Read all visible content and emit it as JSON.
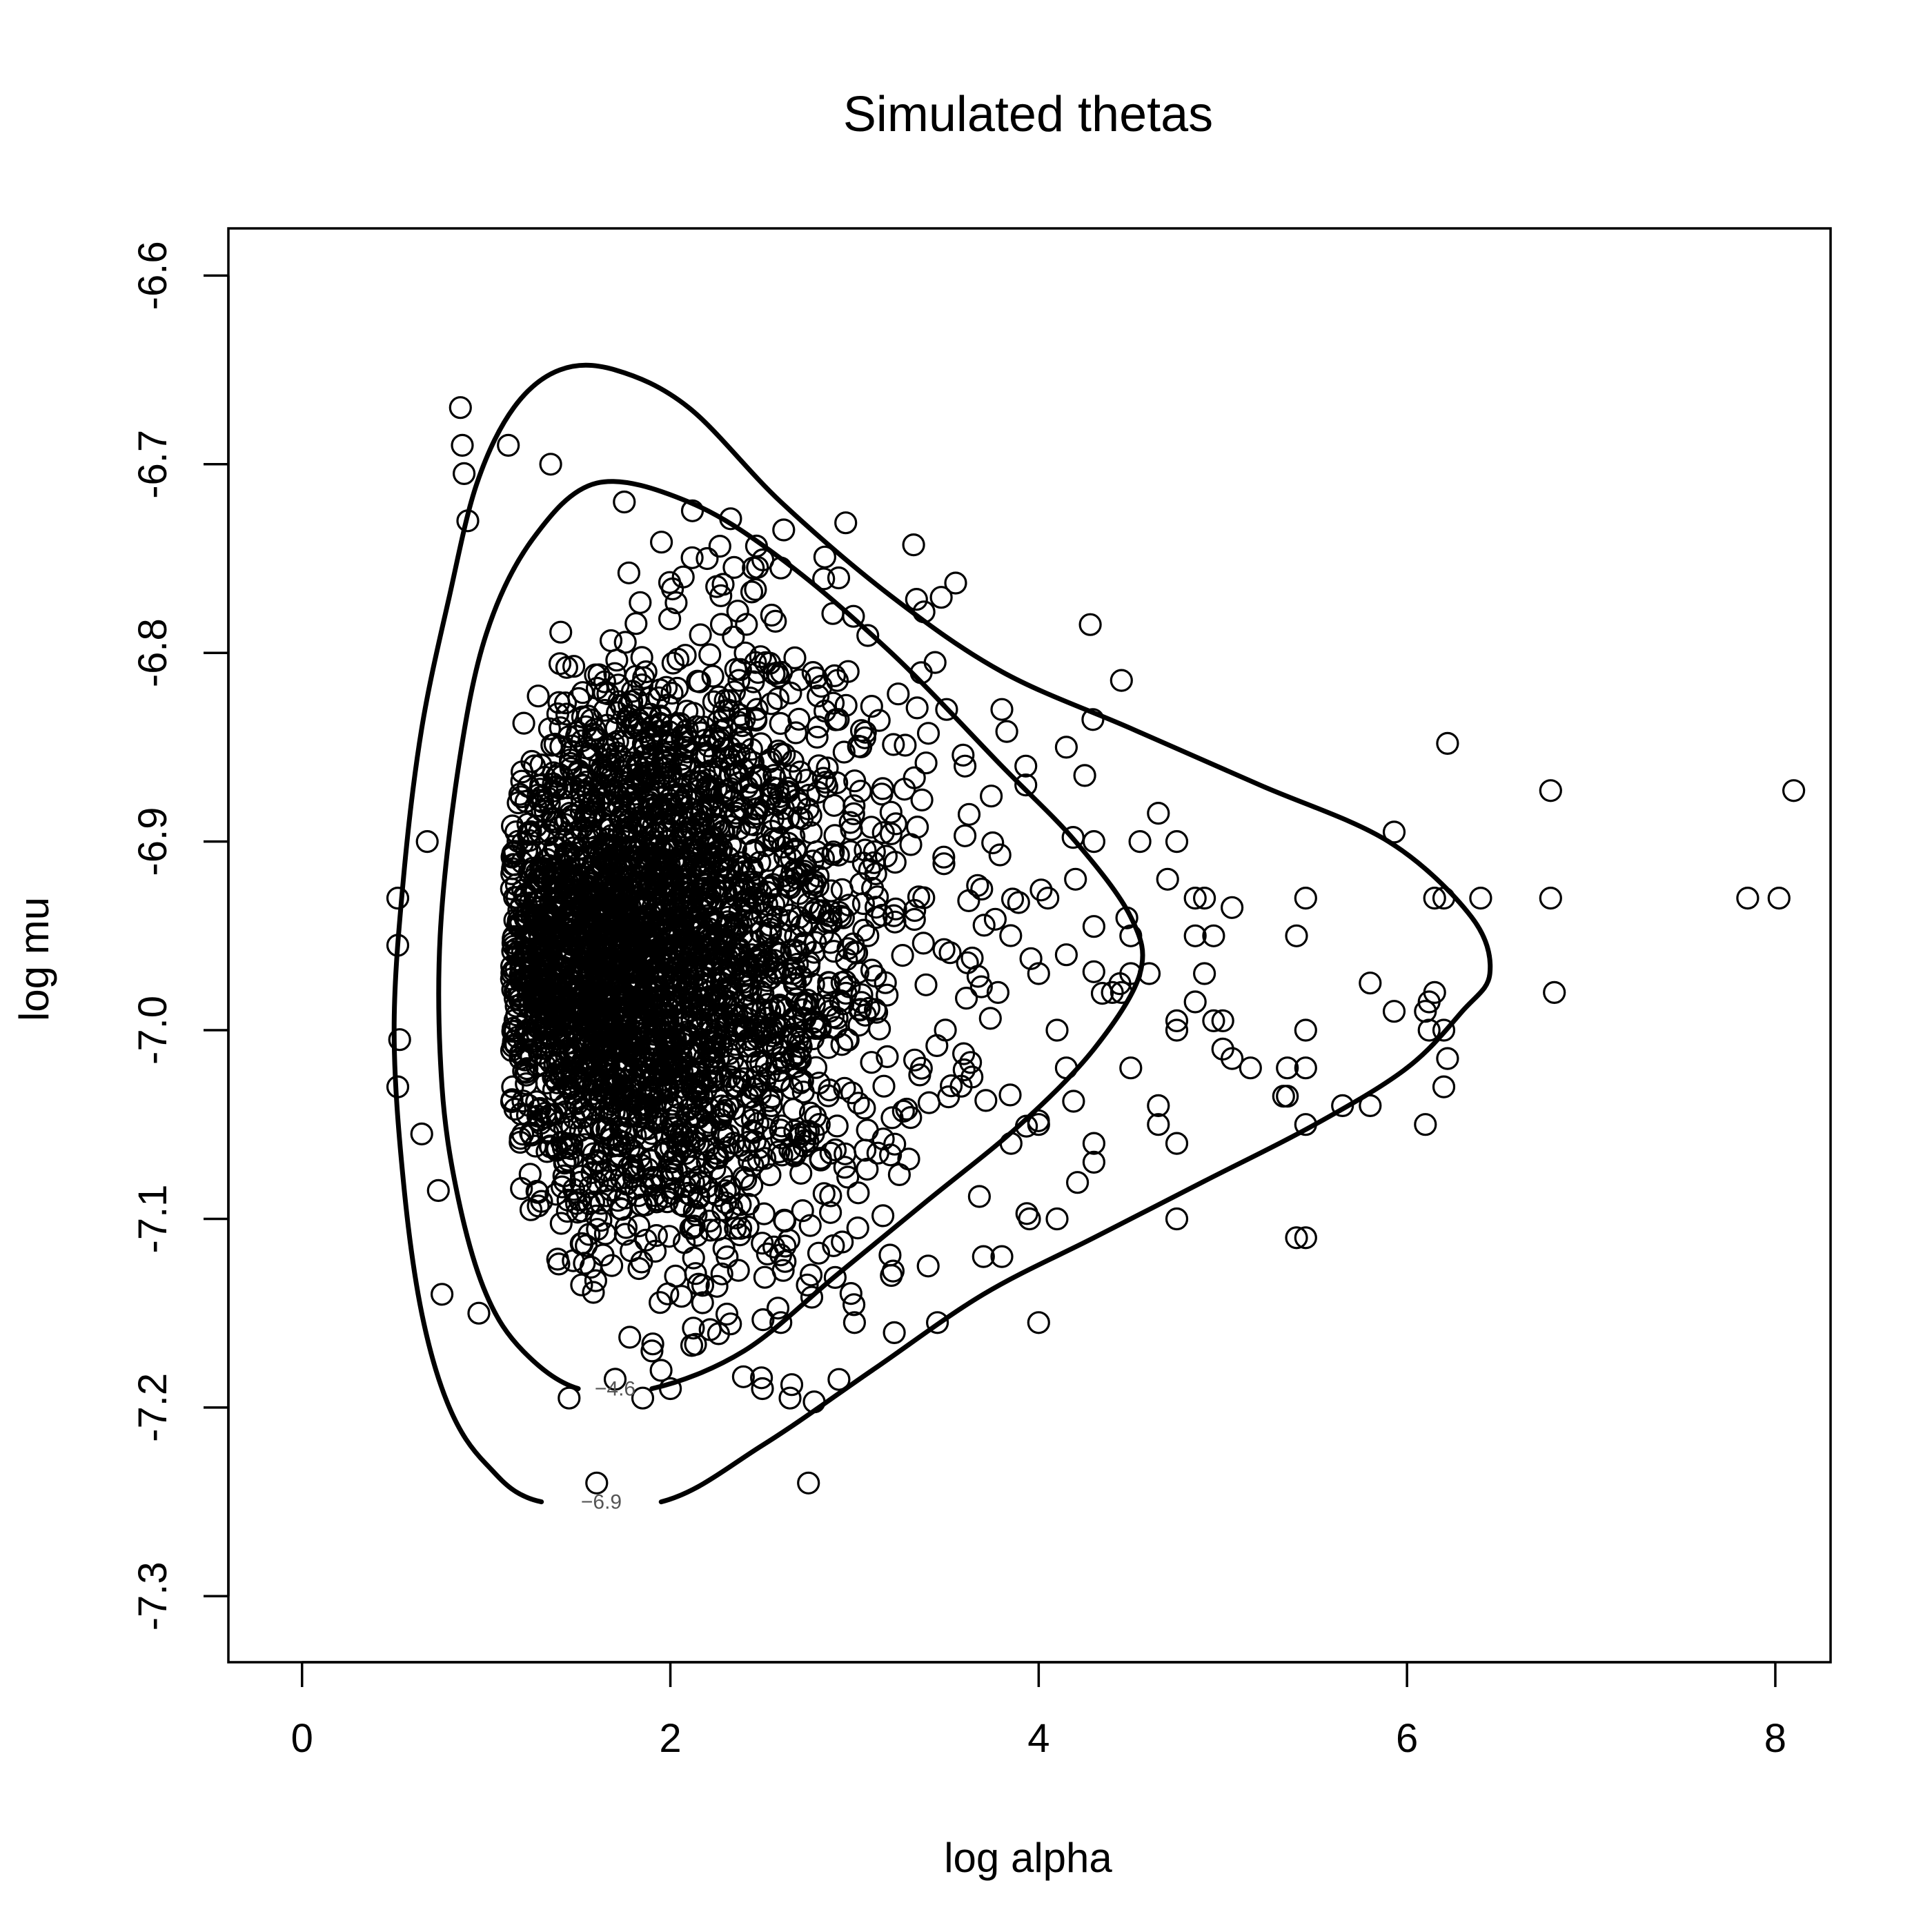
{
  "chart_data": {
    "type": "scatter",
    "title": "Simulated thetas",
    "xlabel": "log alpha",
    "ylabel": "log mu",
    "xlim": [
      -0.4,
      8.3
    ],
    "ylim": [
      -7.335,
      -6.575
    ],
    "xticks": [
      0,
      2,
      4,
      6,
      8
    ],
    "yticks": [
      -7.3,
      -7.2,
      -7.1,
      -7.0,
      -6.9,
      -6.8,
      -6.7,
      -6.6
    ],
    "xtick_labels": [
      "0",
      "2",
      "4",
      "6",
      "8"
    ],
    "ytick_labels": [
      "-7.3",
      "-7.2",
      "-7.1",
      "-7.0",
      "-6.9",
      "-6.8",
      "-6.7",
      "-6.6"
    ],
    "grid": false,
    "legend": "none",
    "marker": "open-circle",
    "color": "#000000",
    "contour_labels": [
      "-4.6",
      "-6.9"
    ],
    "contours": [
      {
        "level": "-4.6",
        "points": [
          [
            1.9,
            -7.19
          ],
          [
            2.4,
            -7.17
          ],
          [
            2.9,
            -7.13
          ],
          [
            3.4,
            -7.09
          ],
          [
            3.9,
            -7.05
          ],
          [
            4.3,
            -7.01
          ],
          [
            4.55,
            -6.97
          ],
          [
            4.5,
            -6.94
          ],
          [
            4.2,
            -6.9
          ],
          [
            3.8,
            -6.86
          ],
          [
            3.2,
            -6.8
          ],
          [
            2.6,
            -6.75
          ],
          [
            2.1,
            -6.72
          ],
          [
            1.6,
            -6.71
          ],
          [
            1.25,
            -6.74
          ],
          [
            1.0,
            -6.79
          ],
          [
            0.85,
            -6.86
          ],
          [
            0.75,
            -6.95
          ],
          [
            0.76,
            -7.03
          ],
          [
            0.85,
            -7.09
          ],
          [
            1.0,
            -7.14
          ],
          [
            1.2,
            -7.17
          ],
          [
            1.5,
            -7.19
          ]
        ]
      },
      {
        "level": "-6.9",
        "points": [
          [
            1.95,
            -7.25
          ],
          [
            2.5,
            -7.22
          ],
          [
            3.1,
            -7.18
          ],
          [
            3.7,
            -7.14
          ],
          [
            4.3,
            -7.11
          ],
          [
            4.9,
            -7.08
          ],
          [
            5.5,
            -7.05
          ],
          [
            6.0,
            -7.02
          ],
          [
            6.3,
            -6.99
          ],
          [
            6.45,
            -6.97
          ],
          [
            6.35,
            -6.94
          ],
          [
            5.9,
            -6.9
          ],
          [
            5.2,
            -6.87
          ],
          [
            4.5,
            -6.84
          ],
          [
            3.8,
            -6.81
          ],
          [
            3.2,
            -6.77
          ],
          [
            2.6,
            -6.72
          ],
          [
            2.1,
            -6.67
          ],
          [
            1.7,
            -6.65
          ],
          [
            1.4,
            -6.65
          ],
          [
            1.15,
            -6.67
          ],
          [
            0.95,
            -6.71
          ],
          [
            0.8,
            -6.77
          ],
          [
            0.65,
            -6.84
          ],
          [
            0.55,
            -6.92
          ],
          [
            0.5,
            -7.0
          ],
          [
            0.55,
            -7.08
          ],
          [
            0.65,
            -7.15
          ],
          [
            0.8,
            -7.2
          ],
          [
            1.0,
            -7.23
          ],
          [
            1.3,
            -7.25
          ]
        ]
      }
    ],
    "dense_cluster": {
      "center": [
        2.0,
        -6.96
      ],
      "sd": [
        0.55,
        0.075
      ],
      "n": 3200,
      "seed": 12345
    },
    "points": [
      [
        0.52,
        -6.93
      ],
      [
        0.52,
        -6.955
      ],
      [
        0.53,
        -7.005
      ],
      [
        0.52,
        -7.03
      ],
      [
        0.65,
        -7.055
      ],
      [
        0.68,
        -6.9
      ],
      [
        0.74,
        -7.085
      ],
      [
        0.76,
        -7.14
      ],
      [
        0.86,
        -6.67
      ],
      [
        0.87,
        -6.69
      ],
      [
        0.88,
        -6.705
      ],
      [
        0.9,
        -6.73
      ],
      [
        0.96,
        -7.15
      ],
      [
        1.12,
        -6.69
      ],
      [
        1.35,
        -6.7
      ],
      [
        1.6,
        -7.24
      ],
      [
        1.7,
        -7.185
      ],
      [
        1.45,
        -7.195
      ],
      [
        1.9,
        -7.17
      ],
      [
        1.85,
        -7.195
      ],
      [
        2.0,
        -7.19
      ],
      [
        2.75,
        -7.24
      ],
      [
        2.65,
        -7.195
      ],
      [
        2.5,
        -7.19
      ],
      [
        2.6,
        -7.155
      ],
      [
        1.75,
        -6.72
      ],
      [
        2.2,
        -6.75
      ],
      [
        2.45,
        -6.755
      ],
      [
        2.6,
        -6.755
      ],
      [
        2.55,
        -6.78
      ],
      [
        3.5,
        -6.83
      ],
      [
        3.8,
        -6.83
      ],
      [
        3.6,
        -6.86
      ],
      [
        3.93,
        -6.86
      ],
      [
        3.93,
        -6.87
      ],
      [
        4.15,
        -6.85
      ],
      [
        4.28,
        -6.785
      ],
      [
        4.25,
        -6.865
      ],
      [
        4.3,
        -6.9
      ],
      [
        4.2,
        -6.92
      ],
      [
        4.05,
        -6.93
      ],
      [
        4.15,
        -6.96
      ],
      [
        4.3,
        -6.945
      ],
      [
        4.4,
        -6.98
      ],
      [
        4.0,
        -6.97
      ],
      [
        4.1,
        -7.0
      ],
      [
        4.15,
        -7.02
      ],
      [
        4.0,
        -7.05
      ],
      [
        3.85,
        -7.06
      ],
      [
        4.3,
        -7.06
      ],
      [
        4.3,
        -7.07
      ],
      [
        3.95,
        -7.1
      ],
      [
        4.1,
        -7.1
      ],
      [
        3.7,
        -7.12
      ],
      [
        3.8,
        -7.12
      ],
      [
        3.45,
        -7.155
      ],
      [
        4.0,
        -7.155
      ],
      [
        3.4,
        -7.125
      ],
      [
        3.0,
        -7.155
      ],
      [
        3.2,
        -7.13
      ],
      [
        4.5,
        -7.02
      ],
      [
        4.6,
        -6.97
      ],
      [
        4.65,
        -6.885
      ],
      [
        4.7,
        -6.92
      ],
      [
        4.75,
        -6.9
      ],
      [
        4.85,
        -6.93
      ],
      [
        4.9,
        -6.93
      ],
      [
        4.85,
        -6.95
      ],
      [
        4.95,
        -6.95
      ],
      [
        4.9,
        -6.97
      ],
      [
        5.05,
        -6.935
      ],
      [
        4.85,
        -6.985
      ],
      [
        4.95,
        -6.995
      ],
      [
        5.0,
        -6.995
      ],
      [
        5.0,
        -7.01
      ],
      [
        5.05,
        -7.015
      ],
      [
        5.15,
        -7.02
      ],
      [
        4.75,
        -7.0
      ],
      [
        4.75,
        -6.995
      ],
      [
        4.75,
        -7.06
      ],
      [
        4.65,
        -7.04
      ],
      [
        4.65,
        -7.05
      ],
      [
        4.75,
        -7.1
      ],
      [
        4.5,
        -6.95
      ],
      [
        4.5,
        -6.97
      ],
      [
        4.55,
        -6.9
      ],
      [
        4.45,
        -6.98
      ],
      [
        5.4,
        -6.95
      ],
      [
        5.45,
        -6.93
      ],
      [
        5.45,
        -7.0
      ],
      [
        5.45,
        -7.02
      ],
      [
        5.35,
        -7.02
      ],
      [
        5.35,
        -7.035
      ],
      [
        5.33,
        -7.035
      ],
      [
        5.45,
        -7.05
      ],
      [
        5.4,
        -7.11
      ],
      [
        5.45,
        -7.11
      ],
      [
        5.65,
        -7.04
      ],
      [
        5.8,
        -7.04
      ],
      [
        5.8,
        -6.975
      ],
      [
        5.93,
        -6.895
      ],
      [
        5.93,
        -6.99
      ],
      [
        6.1,
        -6.99
      ],
      [
        6.12,
        -6.985
      ],
      [
        6.15,
        -6.98
      ],
      [
        6.12,
        -7.0
      ],
      [
        6.2,
        -7.0
      ],
      [
        6.15,
        -6.93
      ],
      [
        6.2,
        -6.93
      ],
      [
        6.4,
        -6.93
      ],
      [
        6.22,
        -7.015
      ],
      [
        6.2,
        -7.03
      ],
      [
        6.1,
        -7.05
      ],
      [
        6.22,
        -6.848
      ],
      [
        6.78,
        -6.873
      ],
      [
        6.78,
        -6.93
      ],
      [
        6.8,
        -6.98
      ],
      [
        7.85,
        -6.93
      ],
      [
        8.02,
        -6.93
      ],
      [
        8.1,
        -6.873
      ]
    ]
  }
}
